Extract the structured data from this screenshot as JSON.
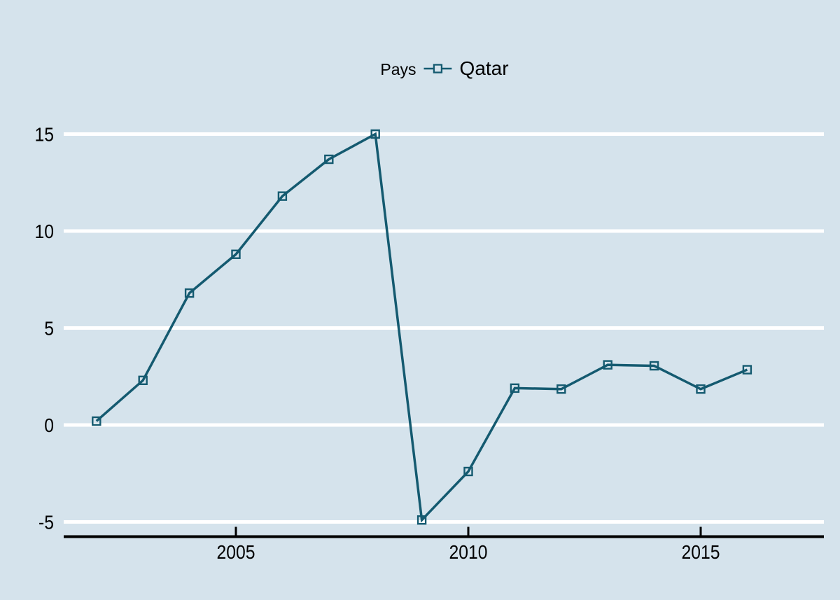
{
  "legend": {
    "title": "Pays",
    "series_label": "Qatar",
    "marker_icon": "hollow-square-on-line"
  },
  "colors": {
    "background": "#d5e3ec",
    "series_line": "#145a70",
    "gridline": "#ffffff",
    "axis_line": "#000000",
    "text": "#000000"
  },
  "chart_data": {
    "type": "line",
    "title": "",
    "xlabel": "",
    "ylabel": "",
    "x": [
      2002,
      2003,
      2004,
      2005,
      2006,
      2007,
      2008,
      2009,
      2010,
      2011,
      2012,
      2013,
      2014,
      2015,
      2016
    ],
    "series": [
      {
        "name": "Qatar",
        "marker": "hollow-square",
        "values": [
          0.2,
          2.3,
          6.8,
          8.8,
          11.8,
          13.7,
          15.0,
          -4.9,
          -2.4,
          1.9,
          1.85,
          3.1,
          3.05,
          1.85,
          2.85
        ]
      }
    ],
    "x_ticks": [
      2005,
      2010,
      2015
    ],
    "y_ticks": [
      15,
      10,
      5,
      0,
      -5
    ],
    "xlim": [
      2001.3,
      2017.6
    ],
    "ylim": [
      -5.8,
      15.8
    ],
    "grid": "horizontal-white",
    "legend_position": "top-center"
  }
}
